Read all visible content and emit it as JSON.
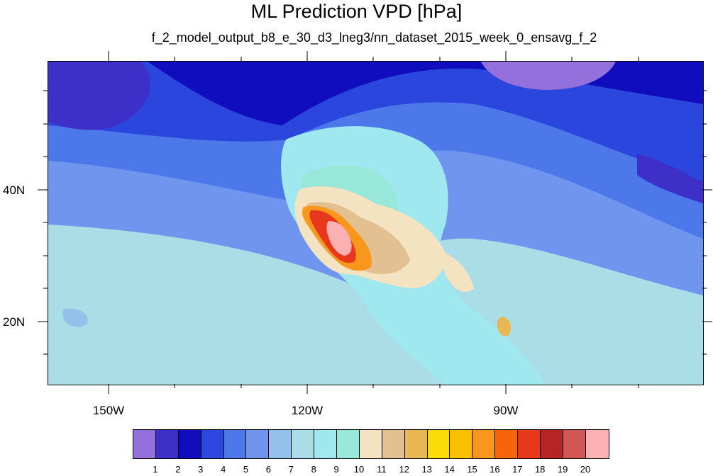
{
  "title": "ML Prediction VPD [hPa]",
  "subtitle": "f_2_model_output_b8_e_30_d3_lneg3/nn_dataset_2015_week_0_ensavg_f_2",
  "lat_labels": [
    "40N",
    "20N"
  ],
  "lon_labels": [
    "150W",
    "120W",
    "90W"
  ],
  "colorbar": {
    "levels": [
      "1",
      "2",
      "3",
      "4",
      "5",
      "6",
      "7",
      "8",
      "9",
      "10",
      "11",
      "12",
      "13",
      "14",
      "15",
      "16",
      "17",
      "18",
      "19",
      "20"
    ],
    "colors": [
      "#9370db",
      "#3f2fc9",
      "#0f0dbd",
      "#2d48de",
      "#4c78ea",
      "#6f95ee",
      "#92c1ec",
      "#aadde6",
      "#9fe8f0",
      "#97e8d8",
      "#f3e3c0",
      "#e2c091",
      "#e8b653",
      "#fcdc08",
      "#fcc002",
      "#f9961c",
      "#f6640c",
      "#e8381b",
      "#b62424",
      "#d25653",
      "#fbb1b2"
    ]
  },
  "map_colors": {
    "ocean_deep": "#2b46dd",
    "ocean_mid": "#4c78ea",
    "ocean_light": "#6f95ee",
    "ocean_pale": "#92c1ec",
    "tropic": "#aadde6",
    "northern": "#0f0dbd",
    "nw_pacific": "#3f2fc9",
    "hudson": "#9370db",
    "land_pale": "#9fe8f0",
    "desert_tan": "#f3e3c0",
    "desert_gold": "#e2c091",
    "hot_orange": "#f9961c",
    "hot_red": "#e8381b",
    "hottest": "#fbb1b2"
  }
}
